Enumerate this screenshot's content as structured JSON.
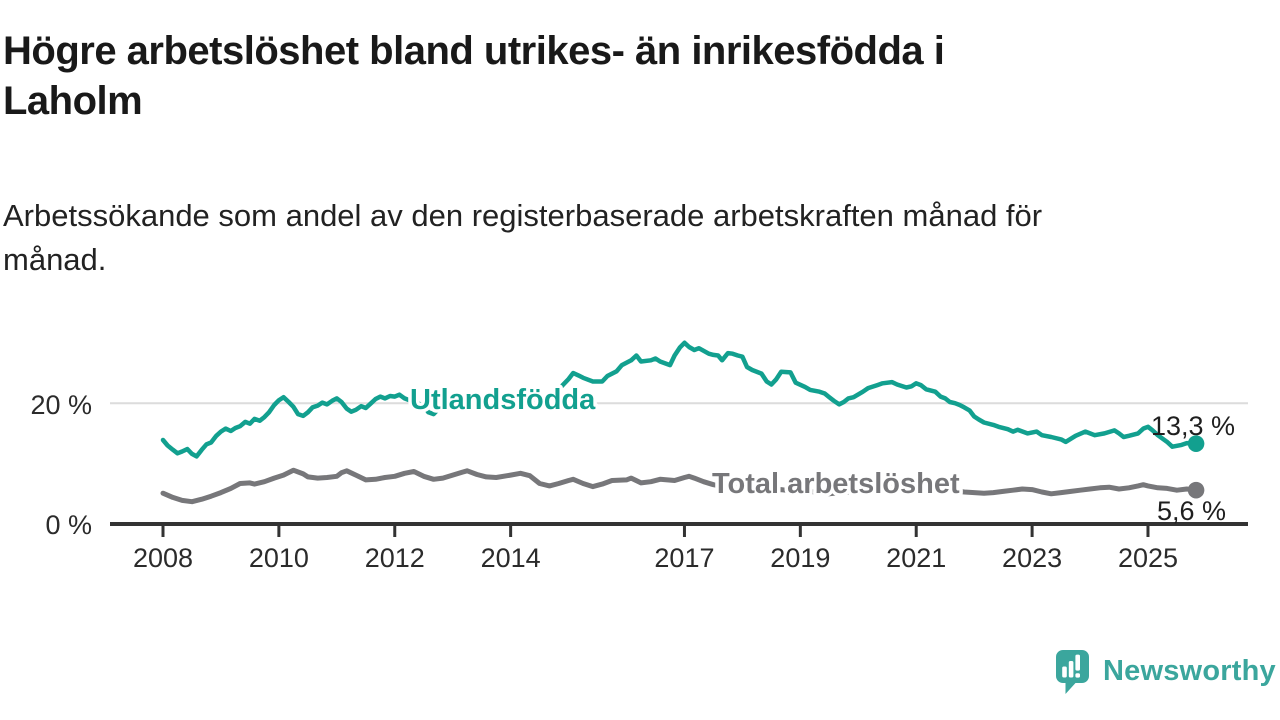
{
  "header": {
    "title_lines": [
      "Högre arbetslöshet bland utrikes- än inrikesfödda i",
      "Laholm"
    ],
    "subtitle_lines": [
      "Arbetssökande som andel av den registerbaserade arbetskraften månad för",
      "månad."
    ]
  },
  "chart_data": {
    "type": "line",
    "title": "Högre arbetslöshet bland utrikes- än inrikesfödda i Laholm",
    "subtitle": "Arbetssökande som andel av den registerbaserade arbetskraften månad för månad.",
    "xlabel": "",
    "ylabel": "",
    "xlim": [
      2007.9,
      2026.2
    ],
    "ylim": [
      0,
      31.5
    ],
    "grid": "single horizontal gridline at 20 %",
    "legend_position": "inline labels on lines",
    "x_ticks": [
      {
        "value": 2008,
        "label": "2008"
      },
      {
        "value": 2010,
        "label": "2010"
      },
      {
        "value": 2012,
        "label": "2012"
      },
      {
        "value": 2014,
        "label": "2014"
      },
      {
        "value": 2017,
        "label": "2017"
      },
      {
        "value": 2019,
        "label": "2019"
      },
      {
        "value": 2021,
        "label": "2021"
      },
      {
        "value": 2023,
        "label": "2023"
      },
      {
        "value": 2025,
        "label": "2025"
      }
    ],
    "y_ticks": [
      {
        "value": 0,
        "label": "0 %"
      },
      {
        "value": 20,
        "label": "20 %"
      }
    ],
    "series": [
      {
        "name": "Utlandsfödda",
        "color": "#12a08f",
        "end_value": 13.3,
        "end_value_label": "13,3 %",
        "points": [
          [
            2008.0,
            13.9
          ],
          [
            2008.08,
            13.0
          ],
          [
            2008.17,
            12.3
          ],
          [
            2008.25,
            11.7
          ],
          [
            2008.33,
            12.0
          ],
          [
            2008.42,
            12.4
          ],
          [
            2008.5,
            11.6
          ],
          [
            2008.58,
            11.2
          ],
          [
            2008.67,
            12.3
          ],
          [
            2008.75,
            13.2
          ],
          [
            2008.83,
            13.5
          ],
          [
            2008.92,
            14.6
          ],
          [
            2009.0,
            15.3
          ],
          [
            2009.08,
            15.8
          ],
          [
            2009.17,
            15.4
          ],
          [
            2009.25,
            15.9
          ],
          [
            2009.33,
            16.2
          ],
          [
            2009.42,
            16.9
          ],
          [
            2009.5,
            16.6
          ],
          [
            2009.58,
            17.4
          ],
          [
            2009.67,
            17.1
          ],
          [
            2009.75,
            17.7
          ],
          [
            2009.83,
            18.5
          ],
          [
            2009.92,
            19.7
          ],
          [
            2010.0,
            20.5
          ],
          [
            2010.08,
            21.0
          ],
          [
            2010.17,
            20.2
          ],
          [
            2010.25,
            19.4
          ],
          [
            2010.33,
            18.2
          ],
          [
            2010.42,
            17.9
          ],
          [
            2010.5,
            18.5
          ],
          [
            2010.58,
            19.3
          ],
          [
            2010.67,
            19.6
          ],
          [
            2010.75,
            20.1
          ],
          [
            2010.83,
            19.8
          ],
          [
            2010.92,
            20.4
          ],
          [
            2011.0,
            20.8
          ],
          [
            2011.08,
            20.2
          ],
          [
            2011.17,
            19.1
          ],
          [
            2011.25,
            18.6
          ],
          [
            2011.33,
            18.9
          ],
          [
            2011.42,
            19.5
          ],
          [
            2011.5,
            19.2
          ],
          [
            2011.58,
            19.9
          ],
          [
            2011.67,
            20.7
          ],
          [
            2011.75,
            21.1
          ],
          [
            2011.83,
            20.8
          ],
          [
            2011.92,
            21.2
          ],
          [
            2012.0,
            21.1
          ],
          [
            2012.08,
            21.4
          ],
          [
            2012.17,
            20.8
          ],
          [
            2012.25,
            20.5
          ],
          [
            2012.33,
            20.2
          ],
          [
            2012.42,
            19.9
          ],
          [
            2012.5,
            19.6
          ],
          [
            2012.58,
            18.5
          ],
          [
            2012.67,
            18.2
          ],
          [
            2012.75,
            19.0
          ],
          [
            2012.83,
            19.6
          ],
          [
            2012.92,
            20.1
          ],
          [
            2013.0,
            20.6
          ],
          [
            2013.17,
            20.9
          ],
          [
            2013.33,
            20.1
          ],
          [
            2013.5,
            19.8
          ],
          [
            2013.67,
            20.6
          ],
          [
            2013.83,
            21.1
          ],
          [
            2014.0,
            20.8
          ],
          [
            2014.17,
            20.4
          ],
          [
            2014.33,
            20.1
          ],
          [
            2014.5,
            20.6
          ],
          [
            2014.67,
            21.2
          ],
          [
            2014.83,
            22.3
          ],
          [
            2015.0,
            24.0
          ],
          [
            2015.08,
            25.0
          ],
          [
            2015.17,
            24.6
          ],
          [
            2015.25,
            24.2
          ],
          [
            2015.42,
            23.6
          ],
          [
            2015.58,
            23.6
          ],
          [
            2015.67,
            24.5
          ],
          [
            2015.83,
            25.3
          ],
          [
            2015.92,
            26.3
          ],
          [
            2016.08,
            27.1
          ],
          [
            2016.17,
            27.9
          ],
          [
            2016.25,
            26.9
          ],
          [
            2016.42,
            27.1
          ],
          [
            2016.5,
            27.4
          ],
          [
            2016.58,
            26.9
          ],
          [
            2016.75,
            26.3
          ],
          [
            2016.83,
            27.9
          ],
          [
            2016.92,
            29.2
          ],
          [
            2017.0,
            30.0
          ],
          [
            2017.08,
            29.3
          ],
          [
            2017.17,
            28.8
          ],
          [
            2017.25,
            29.1
          ],
          [
            2017.42,
            28.2
          ],
          [
            2017.5,
            28.0
          ],
          [
            2017.58,
            27.9
          ],
          [
            2017.65,
            27.1
          ],
          [
            2017.75,
            28.3
          ],
          [
            2017.83,
            28.2
          ],
          [
            2017.92,
            27.9
          ],
          [
            2018.0,
            27.7
          ],
          [
            2018.08,
            26.0
          ],
          [
            2018.17,
            25.5
          ],
          [
            2018.33,
            24.9
          ],
          [
            2018.42,
            23.6
          ],
          [
            2018.5,
            23.1
          ],
          [
            2018.58,
            23.9
          ],
          [
            2018.67,
            25.2
          ],
          [
            2018.83,
            25.1
          ],
          [
            2018.92,
            23.4
          ],
          [
            2019.08,
            22.7
          ],
          [
            2019.17,
            22.2
          ],
          [
            2019.33,
            21.9
          ],
          [
            2019.42,
            21.6
          ],
          [
            2019.5,
            21.0
          ],
          [
            2019.58,
            20.4
          ],
          [
            2019.67,
            19.8
          ],
          [
            2019.75,
            20.2
          ],
          [
            2019.83,
            20.8
          ],
          [
            2019.92,
            21.0
          ],
          [
            2020.08,
            21.9
          ],
          [
            2020.17,
            22.5
          ],
          [
            2020.33,
            23.0
          ],
          [
            2020.42,
            23.3
          ],
          [
            2020.58,
            23.5
          ],
          [
            2020.67,
            23.1
          ],
          [
            2020.83,
            22.6
          ],
          [
            2020.92,
            22.8
          ],
          [
            2021.0,
            23.3
          ],
          [
            2021.08,
            23.0
          ],
          [
            2021.17,
            22.3
          ],
          [
            2021.33,
            21.9
          ],
          [
            2021.42,
            21.1
          ],
          [
            2021.5,
            20.8
          ],
          [
            2021.58,
            20.2
          ],
          [
            2021.67,
            20.0
          ],
          [
            2021.75,
            19.7
          ],
          [
            2021.83,
            19.3
          ],
          [
            2021.92,
            18.8
          ],
          [
            2022.0,
            17.8
          ],
          [
            2022.08,
            17.3
          ],
          [
            2022.17,
            16.8
          ],
          [
            2022.33,
            16.4
          ],
          [
            2022.42,
            16.1
          ],
          [
            2022.58,
            15.7
          ],
          [
            2022.67,
            15.3
          ],
          [
            2022.75,
            15.6
          ],
          [
            2022.92,
            15.0
          ],
          [
            2023.08,
            15.3
          ],
          [
            2023.17,
            14.7
          ],
          [
            2023.33,
            14.4
          ],
          [
            2023.5,
            14.0
          ],
          [
            2023.58,
            13.6
          ],
          [
            2023.75,
            14.6
          ],
          [
            2023.92,
            15.3
          ],
          [
            2024.0,
            15.0
          ],
          [
            2024.08,
            14.7
          ],
          [
            2024.25,
            15.0
          ],
          [
            2024.42,
            15.5
          ],
          [
            2024.5,
            15.0
          ],
          [
            2024.58,
            14.4
          ],
          [
            2024.67,
            14.6
          ],
          [
            2024.83,
            15.0
          ],
          [
            2024.92,
            15.8
          ],
          [
            2025.0,
            16.1
          ],
          [
            2025.08,
            15.5
          ],
          [
            2025.17,
            14.7
          ],
          [
            2025.33,
            13.6
          ],
          [
            2025.42,
            12.8
          ],
          [
            2025.58,
            13.1
          ],
          [
            2025.67,
            13.4
          ],
          [
            2025.83,
            13.3
          ]
        ]
      },
      {
        "name": "Total arbetslöshet",
        "color": "#77777a",
        "end_value": 5.6,
        "end_value_label": "5,6 %",
        "points": [
          [
            2008.0,
            5.1
          ],
          [
            2008.17,
            4.4
          ],
          [
            2008.33,
            3.9
          ],
          [
            2008.5,
            3.7
          ],
          [
            2008.67,
            4.1
          ],
          [
            2008.83,
            4.6
          ],
          [
            2009.0,
            5.2
          ],
          [
            2009.17,
            5.9
          ],
          [
            2009.33,
            6.7
          ],
          [
            2009.5,
            6.8
          ],
          [
            2009.58,
            6.6
          ],
          [
            2009.75,
            7.0
          ],
          [
            2009.92,
            7.6
          ],
          [
            2010.08,
            8.1
          ],
          [
            2010.25,
            8.9
          ],
          [
            2010.42,
            8.3
          ],
          [
            2010.5,
            7.8
          ],
          [
            2010.67,
            7.6
          ],
          [
            2010.83,
            7.7
          ],
          [
            2011.0,
            7.9
          ],
          [
            2011.08,
            8.5
          ],
          [
            2011.17,
            8.8
          ],
          [
            2011.33,
            8.1
          ],
          [
            2011.5,
            7.3
          ],
          [
            2011.67,
            7.4
          ],
          [
            2011.83,
            7.7
          ],
          [
            2012.0,
            7.9
          ],
          [
            2012.17,
            8.4
          ],
          [
            2012.33,
            8.7
          ],
          [
            2012.5,
            7.9
          ],
          [
            2012.67,
            7.4
          ],
          [
            2012.83,
            7.6
          ],
          [
            2013.0,
            8.1
          ],
          [
            2013.17,
            8.6
          ],
          [
            2013.25,
            8.8
          ],
          [
            2013.42,
            8.2
          ],
          [
            2013.58,
            7.8
          ],
          [
            2013.75,
            7.7
          ],
          [
            2014.0,
            8.1
          ],
          [
            2014.17,
            8.4
          ],
          [
            2014.33,
            8.0
          ],
          [
            2014.5,
            6.7
          ],
          [
            2014.67,
            6.3
          ],
          [
            2014.83,
            6.7
          ],
          [
            2015.0,
            7.2
          ],
          [
            2015.08,
            7.4
          ],
          [
            2015.25,
            6.7
          ],
          [
            2015.42,
            6.2
          ],
          [
            2015.58,
            6.6
          ],
          [
            2015.75,
            7.2
          ],
          [
            2016.0,
            7.3
          ],
          [
            2016.08,
            7.6
          ],
          [
            2016.25,
            6.8
          ],
          [
            2016.42,
            7.0
          ],
          [
            2016.58,
            7.4
          ],
          [
            2016.83,
            7.2
          ],
          [
            2017.0,
            7.7
          ],
          [
            2017.08,
            7.9
          ],
          [
            2017.17,
            7.6
          ],
          [
            2017.33,
            7.0
          ],
          [
            2017.5,
            6.5
          ],
          [
            2017.67,
            6.2
          ],
          [
            2017.83,
            6.1
          ],
          [
            2018.0,
            6.3
          ],
          [
            2018.17,
            6.1
          ],
          [
            2018.33,
            5.9
          ],
          [
            2018.5,
            5.6
          ],
          [
            2018.67,
            5.7
          ],
          [
            2018.83,
            5.5
          ],
          [
            2019.0,
            5.6
          ],
          [
            2019.17,
            5.4
          ],
          [
            2019.33,
            5.2
          ],
          [
            2019.5,
            5.0
          ],
          [
            2019.67,
            5.2
          ],
          [
            2019.83,
            5.3
          ],
          [
            2020.0,
            5.6
          ],
          [
            2020.17,
            6.1
          ],
          [
            2020.33,
            6.5
          ],
          [
            2020.5,
            6.6
          ],
          [
            2020.67,
            6.4
          ],
          [
            2020.83,
            6.2
          ],
          [
            2021.0,
            6.3
          ],
          [
            2021.17,
            6.1
          ],
          [
            2021.33,
            5.9
          ],
          [
            2021.5,
            5.7
          ],
          [
            2021.67,
            5.5
          ],
          [
            2021.83,
            5.3
          ],
          [
            2022.0,
            5.2
          ],
          [
            2022.17,
            5.1
          ],
          [
            2022.33,
            5.2
          ],
          [
            2022.5,
            5.4
          ],
          [
            2022.67,
            5.6
          ],
          [
            2022.83,
            5.8
          ],
          [
            2023.0,
            5.7
          ],
          [
            2023.17,
            5.3
          ],
          [
            2023.33,
            5.0
          ],
          [
            2023.5,
            5.2
          ],
          [
            2023.67,
            5.4
          ],
          [
            2023.83,
            5.6
          ],
          [
            2024.0,
            5.8
          ],
          [
            2024.17,
            6.0
          ],
          [
            2024.33,
            6.1
          ],
          [
            2024.5,
            5.8
          ],
          [
            2024.67,
            6.0
          ],
          [
            2024.83,
            6.3
          ],
          [
            2024.92,
            6.5
          ],
          [
            2025.0,
            6.3
          ],
          [
            2025.17,
            6.0
          ],
          [
            2025.33,
            5.9
          ],
          [
            2025.5,
            5.6
          ],
          [
            2025.67,
            5.8
          ],
          [
            2025.83,
            5.6
          ]
        ]
      }
    ],
    "colors": {
      "foreign_born_line": "#12a08f",
      "total_line": "#77777a",
      "gridline": "#dcdcdc",
      "axis": "#333333",
      "axis_text": "#2b2b2b",
      "end_label_text": "#1f1f1f"
    }
  },
  "branding": {
    "logo_text": "Newsworthy",
    "logo_color": "#3ba69d",
    "logo_icon": "speech-bubble-bar-chart-icon"
  }
}
